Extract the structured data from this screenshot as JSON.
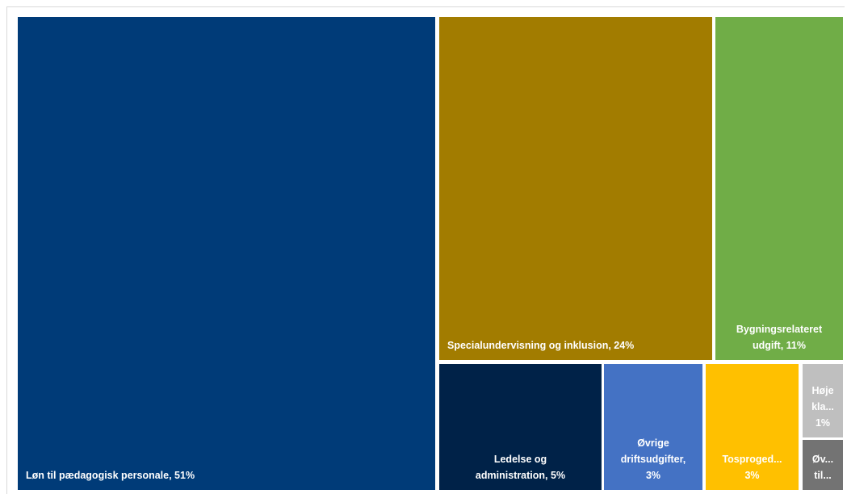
{
  "chart_data": {
    "type": "treemap",
    "title": "",
    "items": [
      {
        "name": "Løn til pædagogisk personale",
        "value": 51,
        "label_lines": [
          "Løn til pædagogisk personale, 51%"
        ],
        "color": "#003B78"
      },
      {
        "name": "Specialundervisning og inklusion",
        "value": 24,
        "label_lines": [
          "Specialundervisning og inklusion, 24%"
        ],
        "color": "#A27C00"
      },
      {
        "name": "Bygningsrelateret udgift",
        "value": 11,
        "label_lines": [
          "Bygningsrelateret",
          "udgift, 11%"
        ],
        "color": "#70AD47"
      },
      {
        "name": "Ledelse og administration",
        "value": 5,
        "label_lines": [
          "Ledelse og",
          "administration, 5%"
        ],
        "color": "#002248"
      },
      {
        "name": "Øvrige driftsudgifter",
        "value": 3,
        "label_lines": [
          "Øvrige",
          "driftsudgifter,",
          "3%"
        ],
        "color": "#4472C4"
      },
      {
        "name": "Tosproged...",
        "value": 3,
        "label_lines": [
          "Tosproged...",
          "3%"
        ],
        "color": "#FFC000"
      },
      {
        "name": "Høje kla...",
        "value": 1,
        "label_lines": [
          "Høje",
          "kla...",
          "1%"
        ],
        "color": "#BFBFBF"
      },
      {
        "name": "Øv... til...",
        "value": 1,
        "label_lines": [
          "Øv...",
          "til..."
        ],
        "color": "#737373"
      }
    ]
  }
}
